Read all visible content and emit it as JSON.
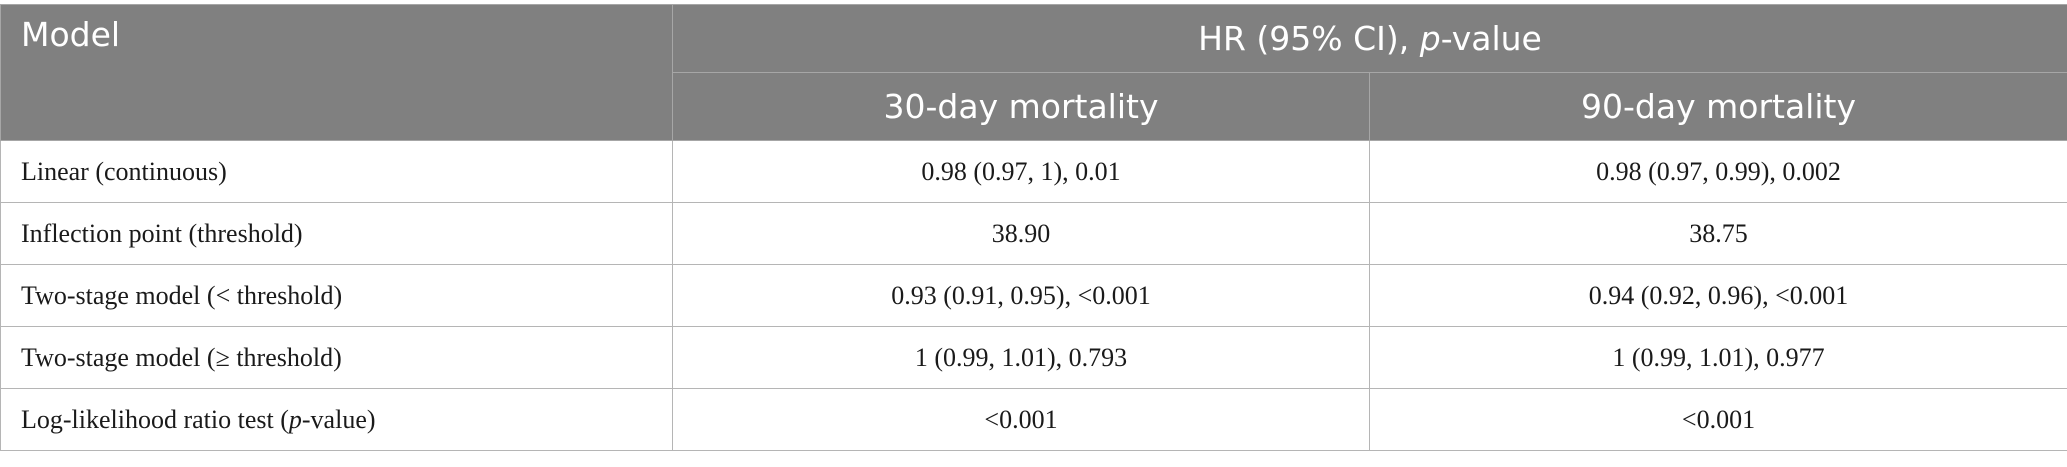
{
  "header": {
    "model_label": "Model",
    "group_label_pre": "HR (95% CI), ",
    "group_label_italic": "p",
    "group_label_post": "-value",
    "col_30": "30-day mortality",
    "col_90": "90-day mortality"
  },
  "rows": [
    {
      "model": "Linear (continuous)",
      "d30": "0.98 (0.97, 1), 0.01",
      "d90": "0.98 (0.97, 0.99), 0.002"
    },
    {
      "model": "Inflection point (threshold)",
      "d30": "38.90",
      "d90": "38.75"
    },
    {
      "model": "Two-stage model (< threshold)",
      "d30": "0.93 (0.91, 0.95), <0.001",
      "d90": "0.94 (0.92, 0.96), <0.001"
    },
    {
      "model": "Two-stage model (≥ threshold)",
      "d30": "1 (0.99, 1.01), 0.793",
      "d90": "1 (0.99, 1.01), 0.977"
    },
    {
      "model_pre": "Log-likelihood ratio test (",
      "model_italic": "p",
      "model_post": "-value)",
      "d30": "<0.001",
      "d90": "<0.001"
    }
  ]
}
